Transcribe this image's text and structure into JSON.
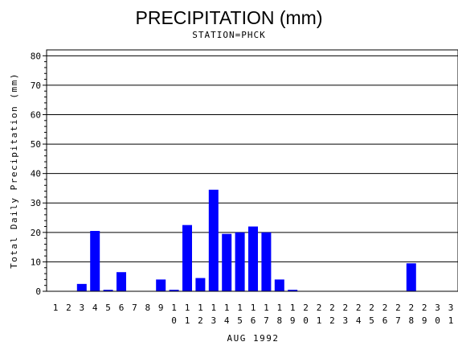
{
  "chart_data": {
    "type": "bar",
    "title": "PRECIPITATION (mm)",
    "subtitle": "STATION=PHCK",
    "xlabel": "AUG 1992",
    "ylabel": "Total Daily Precipitation (mm)",
    "ylim": [
      0,
      82
    ],
    "yticks": [
      0,
      10,
      20,
      30,
      40,
      50,
      60,
      70,
      80
    ],
    "grid": true,
    "bar_color": "#0000ff",
    "categories": [
      "1",
      "2",
      "3",
      "4",
      "5",
      "6",
      "7",
      "8",
      "9",
      "10",
      "11",
      "12",
      "13",
      "14",
      "15",
      "16",
      "17",
      "18",
      "19",
      "20",
      "21",
      "22",
      "23",
      "24",
      "25",
      "26",
      "27",
      "28",
      "29",
      "30",
      "31"
    ],
    "values": [
      0,
      0,
      2.5,
      20.5,
      0.5,
      6.5,
      0,
      0,
      4.0,
      0.5,
      22.5,
      4.5,
      34.5,
      19.5,
      20.0,
      22.0,
      20.0,
      4.0,
      0.5,
      0,
      0,
      0,
      0,
      0,
      0,
      0,
      0,
      9.5,
      0,
      0,
      0
    ]
  }
}
